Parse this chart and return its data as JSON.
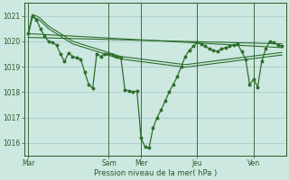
{
  "background_color": "#cce8e0",
  "line_color": "#2d6e2d",
  "grid_color": "#aacccc",
  "axis_color": "#2d5a2d",
  "xlabel": "Pression niveau de la mer( hPa )",
  "ylim": [
    1015.5,
    1021.5
  ],
  "yticks": [
    1016,
    1017,
    1018,
    1019,
    1020,
    1021
  ],
  "day_labels": [
    "Mar",
    "Sam",
    "Mer",
    "Jeu",
    "Ven"
  ],
  "day_positions": [
    0,
    20,
    28,
    42,
    56
  ],
  "total_points": 64,
  "series_main": [
    1020.3,
    1021.0,
    1020.85,
    1020.5,
    1020.2,
    1020.0,
    1019.95,
    1019.85,
    1019.5,
    1019.2,
    1019.55,
    1019.4,
    1019.35,
    1019.3,
    1018.8,
    1018.3,
    1018.15,
    1019.5,
    1019.4,
    1019.5,
    1019.5,
    1019.45,
    1019.4,
    1019.35,
    1018.1,
    1018.05,
    1018.0,
    1018.05,
    1016.2,
    1015.85,
    1015.8,
    1016.6,
    1017.0,
    1017.3,
    1017.65,
    1018.0,
    1018.3,
    1018.6,
    1019.0,
    1019.4,
    1019.65,
    1019.8,
    1019.95,
    1019.9,
    1019.8,
    1019.7,
    1019.65,
    1019.6,
    1019.7,
    1019.75,
    1019.8,
    1019.85,
    1019.9,
    1019.6,
    1019.3,
    1018.3,
    1018.5,
    1018.2,
    1019.2,
    1019.7,
    1020.0,
    1019.95,
    1019.85,
    1019.8
  ],
  "series_upper1": [
    1020.3,
    1021.05,
    1021.0,
    1020.9,
    1020.75,
    1020.6,
    1020.5,
    1020.4,
    1020.3,
    1020.2,
    1020.1,
    1020.0,
    1019.95,
    1019.9,
    1019.85,
    1019.8,
    1019.75,
    1019.7,
    1019.65,
    1019.6,
    1019.55,
    1019.5,
    1019.45,
    1019.4,
    1019.38,
    1019.36,
    1019.34,
    1019.32,
    1019.3,
    1019.28,
    1019.26,
    1019.24,
    1019.22,
    1019.2,
    1019.18,
    1019.16,
    1019.14,
    1019.12,
    1019.1,
    1019.08,
    1019.1,
    1019.12,
    1019.14,
    1019.16,
    1019.18,
    1019.2,
    1019.22,
    1019.24,
    1019.26,
    1019.28,
    1019.3,
    1019.32,
    1019.34,
    1019.36,
    1019.38,
    1019.4,
    1019.42,
    1019.44,
    1019.46,
    1019.48,
    1019.5,
    1019.52,
    1019.54,
    1019.56
  ],
  "series_upper2": [
    1020.25,
    1020.95,
    1020.9,
    1020.8,
    1020.65,
    1020.5,
    1020.4,
    1020.3,
    1020.2,
    1020.1,
    1020.0,
    1019.9,
    1019.85,
    1019.8,
    1019.75,
    1019.7,
    1019.65,
    1019.6,
    1019.55,
    1019.5,
    1019.45,
    1019.4,
    1019.35,
    1019.3,
    1019.28,
    1019.26,
    1019.24,
    1019.22,
    1019.2,
    1019.18,
    1019.16,
    1019.14,
    1019.12,
    1019.1,
    1019.08,
    1019.06,
    1019.04,
    1019.02,
    1019.0,
    1018.98,
    1019.0,
    1019.02,
    1019.04,
    1019.06,
    1019.08,
    1019.1,
    1019.12,
    1019.14,
    1019.16,
    1019.18,
    1019.2,
    1019.22,
    1019.24,
    1019.26,
    1019.28,
    1019.3,
    1019.32,
    1019.34,
    1019.36,
    1019.38,
    1019.4,
    1019.42,
    1019.44,
    1019.46
  ],
  "trend_line": [
    [
      0,
      1020.3
    ],
    [
      63,
      1019.75
    ]
  ],
  "trend_line2": [
    [
      0,
      1020.15
    ],
    [
      63,
      1019.9
    ]
  ]
}
